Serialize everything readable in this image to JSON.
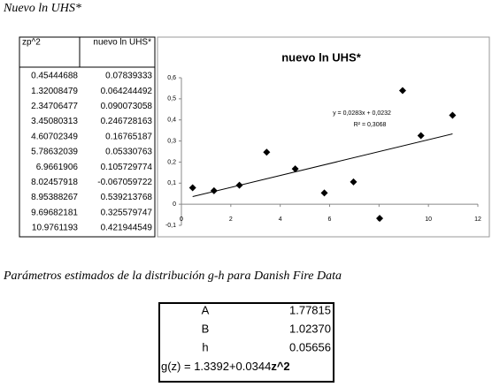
{
  "heading": "Nuevo ln UHS*",
  "table": {
    "headers": [
      "zp^2",
      "nuevo ln UHS*"
    ]
  },
  "chart_data": {
    "type": "scatter",
    "title": "nuevo ln UHS*",
    "x": [
      0.45444688,
      1.32008479,
      2.34706477,
      3.45080313,
      4.60702349,
      5.78632039,
      6.9661906,
      8.02457918,
      8.95388267,
      9.69682181,
      10.9761193
    ],
    "series": [
      {
        "color": "#000000",
        "values": [
          0.07839333,
          0.064244492,
          0.090073058,
          0.246728163,
          0.16765187,
          0.05330763,
          0.105729774,
          -0.067059722,
          0.539213768,
          0.325579747,
          0.421944549
        ]
      }
    ],
    "xlim": [
      0,
      12
    ],
    "xticks": [
      0,
      2,
      4,
      6,
      8,
      10,
      12
    ],
    "ylim": [
      -0.1,
      0.6
    ],
    "yticks": [
      {
        "value": -0.1,
        "label": "-0,1"
      },
      {
        "value": 0,
        "label": "0"
      },
      {
        "value": 0.1,
        "label": "0,1"
      },
      {
        "value": 0.2,
        "label": "0,2"
      },
      {
        "value": 0.3,
        "label": "0,3"
      },
      {
        "value": 0.4,
        "label": "0,4"
      },
      {
        "value": 0.5,
        "label": "0,5"
      },
      {
        "value": 0.6,
        "label": "0,6"
      }
    ],
    "trendline": {
      "slope": 0.0283,
      "intercept": 0.0232,
      "equation": "y = 0,0283x + 0,0232",
      "r2": "R² = 0,3068"
    }
  },
  "caption": "Parámetros estimados de la distribución g-h para Danish Fire Data",
  "params": [
    {
      "name": "A",
      "value": "1.77815"
    },
    {
      "name": "B",
      "value": "1.02370"
    },
    {
      "name": "h",
      "value": "0.05656"
    }
  ],
  "formula": {
    "text": "g(z) = 1.3392+0.0344",
    "bold": "z^2"
  }
}
